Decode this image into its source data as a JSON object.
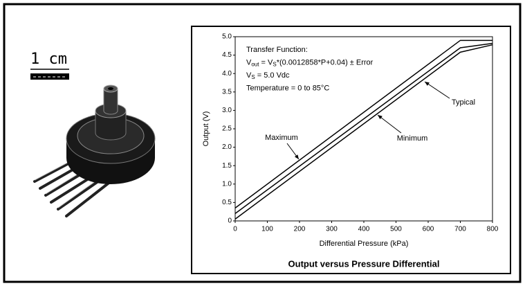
{
  "scale_label": "1 cm",
  "chart_data": {
    "type": "line",
    "title": "Output versus Pressure Differential",
    "xlabel": "Differential Pressure (kPa)",
    "ylabel": "Output (V)",
    "annotation_lines": [
      [
        {
          "text": "Transfer Function:"
        }
      ],
      [
        {
          "text": "V"
        },
        {
          "text": "out",
          "sub": true
        },
        {
          "text": " = V"
        },
        {
          "text": "S",
          "sub": true
        },
        {
          "text": "*(0.0012858*P+0.04) ± Error"
        }
      ],
      [
        {
          "text": "V"
        },
        {
          "text": "S",
          "sub": true
        },
        {
          "text": " = 5.0 Vdc"
        }
      ],
      [
        {
          "text": "Temperature = 0 to 85°C"
        }
      ]
    ],
    "x": [
      0,
      700,
      800
    ],
    "series": [
      {
        "name": "Maximum",
        "color": "#000000",
        "values": [
          0.35,
          4.9,
          4.9
        ]
      },
      {
        "name": "Typical",
        "color": "#000000",
        "values": [
          0.2,
          4.7,
          4.82
        ]
      },
      {
        "name": "Minimum",
        "color": "#000000",
        "values": [
          0.05,
          4.58,
          4.78
        ]
      }
    ],
    "xlim": [
      0,
      800
    ],
    "xticks": [
      0,
      100,
      200,
      300,
      400,
      500,
      600,
      700,
      800
    ],
    "ylim": [
      0,
      5
    ],
    "yticks": [
      0,
      0.5,
      {
        "value": 1,
        "label": "1.0"
      },
      1.5,
      {
        "value": 2,
        "label": "2.0"
      },
      2.5,
      {
        "value": 3,
        "label": "3.0"
      },
      3.5,
      {
        "value": 4,
        "label": "4.0"
      },
      4.5,
      {
        "value": 5,
        "label": "5.0"
      }
    ],
    "grid": false
  }
}
